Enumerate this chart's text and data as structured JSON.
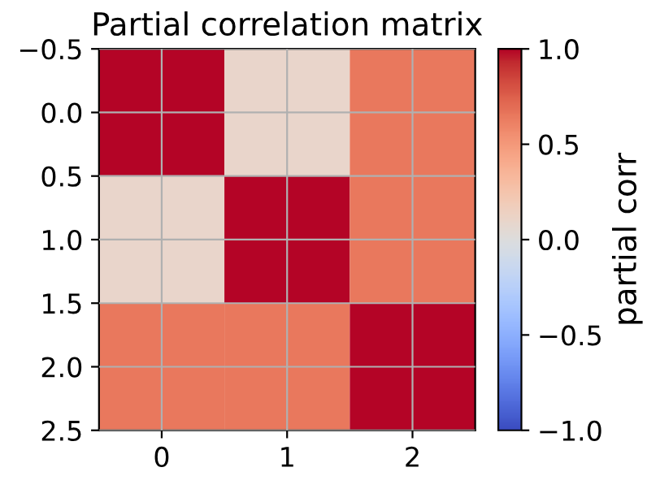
{
  "chart_data": {
    "type": "heatmap",
    "title": "Partial correlation matrix",
    "clabel": "partial corr",
    "cells": [
      [
        1.0,
        0.1,
        0.65
      ],
      [
        0.1,
        1.0,
        0.65
      ],
      [
        0.65,
        0.65,
        1.0
      ]
    ],
    "xlim": [
      -0.5,
      2.5
    ],
    "xticks": [
      0,
      1,
      2
    ],
    "ylim": [
      2.5,
      -0.5
    ],
    "yticks": [
      {
        "value": -0.5,
        "label": "−0.5"
      },
      {
        "value": 0,
        "label": "0.0"
      },
      {
        "value": 0.5,
        "label": "0.5"
      },
      {
        "value": 1,
        "label": "1.0"
      },
      {
        "value": 1.5,
        "label": "1.5"
      },
      {
        "value": 2,
        "label": "2.0"
      },
      {
        "value": 2.5,
        "label": "2.5"
      }
    ],
    "clim": [
      -1.0,
      1.0
    ],
    "cticks": [
      {
        "value": -1,
        "label": "−1.0"
      },
      {
        "value": -0.5,
        "label": "−0.5"
      },
      {
        "value": 0,
        "label": "0.0"
      },
      {
        "value": 0.5,
        "label": "0.5"
      },
      {
        "value": 1,
        "label": "1.0"
      }
    ],
    "grid": true
  }
}
